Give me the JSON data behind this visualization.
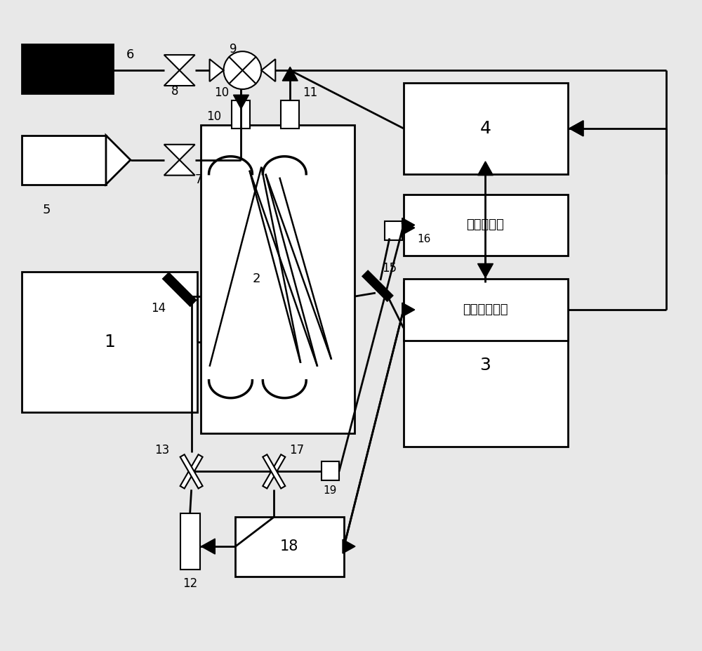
{
  "bg_color": "#e8e8e8",
  "lc": "#000000",
  "lw": 2.0,
  "laser_abs": "激光吸收率",
  "laser_spec": "激光光谱信号"
}
